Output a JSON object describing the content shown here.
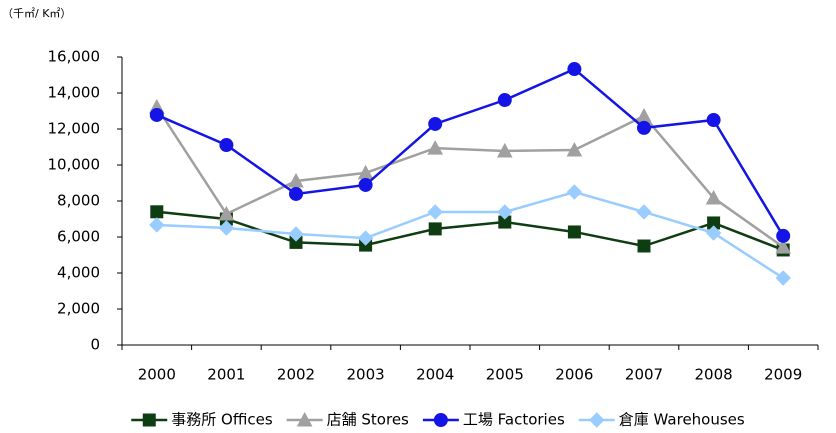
{
  "chart_data": {
    "type": "line",
    "unit_label": "（千㎡/ K㎡）",
    "categories": [
      "2000",
      "2001",
      "2002",
      "2003",
      "2004",
      "2005",
      "2006",
      "2007",
      "2008",
      "2009"
    ],
    "series": [
      {
        "name": "事務所 Offices",
        "color": "#0f3d12",
        "marker": "square",
        "values": [
          7400,
          7000,
          5700,
          5550,
          6450,
          6830,
          6280,
          5500,
          6780,
          5280
        ]
      },
      {
        "name": "店舗 Stores",
        "color": "#a0a0a0",
        "marker": "triangle",
        "values": [
          13220,
          7280,
          9110,
          9560,
          10940,
          10780,
          10830,
          12720,
          8170,
          5440
        ]
      },
      {
        "name": "工場 Factories",
        "color": "#1414e6",
        "marker": "circle",
        "values": [
          12780,
          11110,
          8390,
          8890,
          12280,
          13610,
          15330,
          12060,
          12500,
          6060
        ]
      },
      {
        "name": "倉庫 Warehouses",
        "color": "#99ccff",
        "marker": "diamond",
        "values": [
          6670,
          6500,
          6170,
          5940,
          7390,
          7390,
          8500,
          7390,
          6220,
          3720
        ]
      }
    ],
    "ylim": [
      0,
      16000
    ],
    "yticks": [
      0,
      {
        "value": 2000,
        "label": "2,000"
      },
      {
        "value": 4000,
        "label": "4,000"
      },
      {
        "value": 6000,
        "label": "6,000"
      },
      {
        "value": 8000,
        "label": "8,000"
      },
      {
        "value": 10000,
        "label": "10,000"
      },
      {
        "value": 12000,
        "label": "12,000"
      },
      {
        "value": 14000,
        "label": "14,000"
      },
      {
        "value": 16000,
        "label": "16,000"
      }
    ],
    "grid": false,
    "legend": "bottom"
  }
}
